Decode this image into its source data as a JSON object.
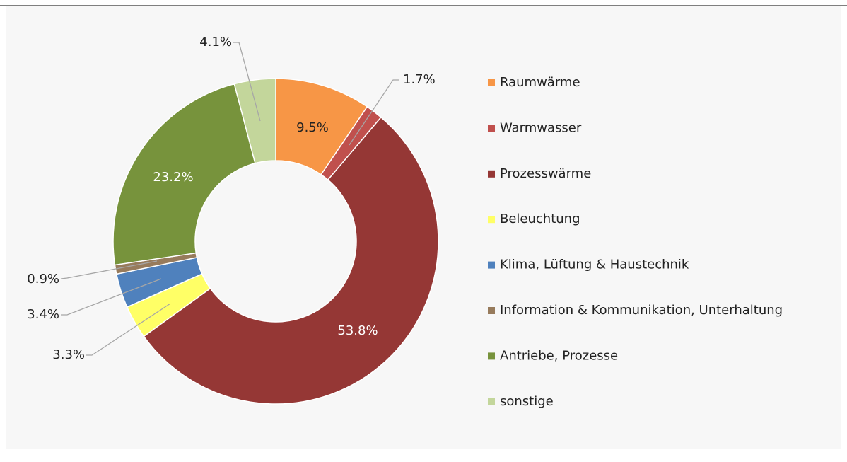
{
  "chart_data": {
    "type": "donut",
    "categories": [
      "Raumwärme",
      "Warmwasser",
      "Prozesswärme",
      "Beleuchtung",
      "Klima, Lüftung & Haustechnik",
      "Information & Kommunikation, Unterhaltung",
      "Antriebe, Prozesse",
      "sonstige"
    ],
    "values": [
      9.5,
      1.7,
      53.8,
      3.3,
      3.4,
      0.9,
      23.2,
      4.1
    ],
    "value_labels": [
      "9.5%",
      "1.7%",
      "53.8%",
      "3.3%",
      "3.4%",
      "0.9%",
      "23.2%",
      "4.1%"
    ],
    "colors": [
      "#f79646",
      "#c0504d",
      "#953735",
      "#ffff66",
      "#4f81bd",
      "#977b5c",
      "#77933c",
      "#c3d69b"
    ],
    "legend": "right"
  }
}
